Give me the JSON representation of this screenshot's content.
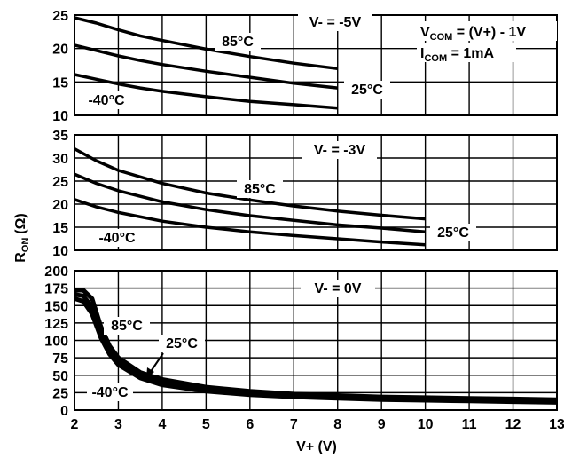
{
  "chart_data": {
    "type": "line",
    "xlabel": "V+ (V)",
    "ylabel_main": "R",
    "ylabel_sub": "ON",
    "ylabel_unit": "(Ω)",
    "annotations": {
      "vcom_v": "V",
      "vcom_sub": "COM",
      "vcom_rest": " = (V+) - 1V",
      "icom_i": "I",
      "icom_sub": "COM",
      "icom_rest": " = 1mA"
    },
    "xlim": [
      2,
      13
    ],
    "xticks": [
      "2",
      "3",
      "4",
      "5",
      "6",
      "7",
      "8",
      "9",
      "10",
      "11",
      "12",
      "13"
    ],
    "panels": [
      {
        "title": "V- = -5V",
        "ylim": [
          10,
          25
        ],
        "yticks": [
          "10",
          "15",
          "20",
          "25"
        ],
        "series": [
          {
            "name": "85°C",
            "x": [
              2,
              2.5,
              3,
              3.5,
              4,
              5,
              6,
              7,
              8
            ],
            "y": [
              24.6,
              23.8,
              22.8,
              21.9,
              21.2,
              19.9,
              18.8,
              17.8,
              17.0
            ]
          },
          {
            "name": "25°C",
            "x": [
              2,
              2.5,
              3,
              3.5,
              4,
              5,
              6,
              7,
              8
            ],
            "y": [
              20.5,
              19.7,
              18.9,
              18.2,
              17.6,
              16.6,
              15.7,
              14.8,
              14.1
            ]
          },
          {
            "name": "-40°C",
            "x": [
              2,
              2.5,
              3,
              3.5,
              4,
              5,
              6,
              7,
              8
            ],
            "y": [
              16.1,
              15.4,
              14.7,
              14.1,
              13.6,
              12.8,
              12.1,
              11.6,
              11.1
            ]
          }
        ],
        "labels": [
          "85°C",
          "25°C",
          "-40°C"
        ]
      },
      {
        "title": "V- = -3V",
        "ylim": [
          10,
          35
        ],
        "yticks": [
          "10",
          "15",
          "20",
          "25",
          "30",
          "35"
        ],
        "series": [
          {
            "name": "85°C",
            "x": [
              2,
              2.5,
              3,
              4,
              5,
              6,
              7,
              8,
              9,
              10
            ],
            "y": [
              32.0,
              29.4,
              27.3,
              24.5,
              22.4,
              20.9,
              19.6,
              18.5,
              17.6,
              16.8
            ]
          },
          {
            "name": "25°C",
            "x": [
              2,
              2.5,
              3,
              4,
              5,
              6,
              7,
              8,
              9,
              10
            ],
            "y": [
              26.5,
              24.5,
              22.9,
              20.5,
              18.8,
              17.5,
              16.5,
              15.5,
              14.8,
              14.0
            ]
          },
          {
            "name": "-40°C",
            "x": [
              2,
              2.5,
              3,
              4,
              5,
              6,
              7,
              8,
              9,
              10
            ],
            "y": [
              21.0,
              19.4,
              18.2,
              16.3,
              15.0,
              14.0,
              13.2,
              12.5,
              11.8,
              11.2
            ]
          }
        ],
        "labels": [
          "85°C",
          "25°C",
          "-40°C"
        ]
      },
      {
        "title": "V- = 0V",
        "ylim": [
          0,
          200
        ],
        "yticks": [
          "0",
          "25",
          "50",
          "75",
          "100",
          "125",
          "150",
          "175",
          "200"
        ],
        "series": [
          {
            "name": "85°C",
            "x": [
              2,
              2.2,
              2.4,
              2.6,
              2.8,
              3,
              3.5,
              4,
              5,
              6,
              7,
              8,
              9,
              10,
              11,
              12,
              13
            ],
            "y": [
              172,
              172,
              160,
              120,
              92,
              75,
              54,
              44,
              33,
              27,
              23,
              21,
              19,
              18,
              17,
              16,
              15
            ]
          },
          {
            "name": "25°C",
            "x": [
              2,
              2.2,
              2.4,
              2.6,
              2.8,
              3,
              3.5,
              4,
              5,
              6,
              7,
              8,
              9,
              10,
              11,
              12,
              13
            ],
            "y": [
              166,
              164,
              148,
              112,
              86,
              70,
              50,
              40,
              30,
              25,
              21,
              19,
              17,
              16,
              15,
              14,
              13
            ]
          },
          {
            "name": "-40°C",
            "x": [
              2,
              2.2,
              2.4,
              2.6,
              2.8,
              3,
              3.5,
              4,
              5,
              6,
              7,
              8,
              9,
              10,
              11,
              12,
              13
            ],
            "y": [
              160,
              156,
              138,
              104,
              80,
              65,
              46,
              36,
              27,
              22,
              19,
              17,
              15,
              14,
              13,
              12,
              11
            ]
          }
        ],
        "labels": [
          "85°C",
          "25°C",
          "-40°C"
        ]
      }
    ]
  }
}
